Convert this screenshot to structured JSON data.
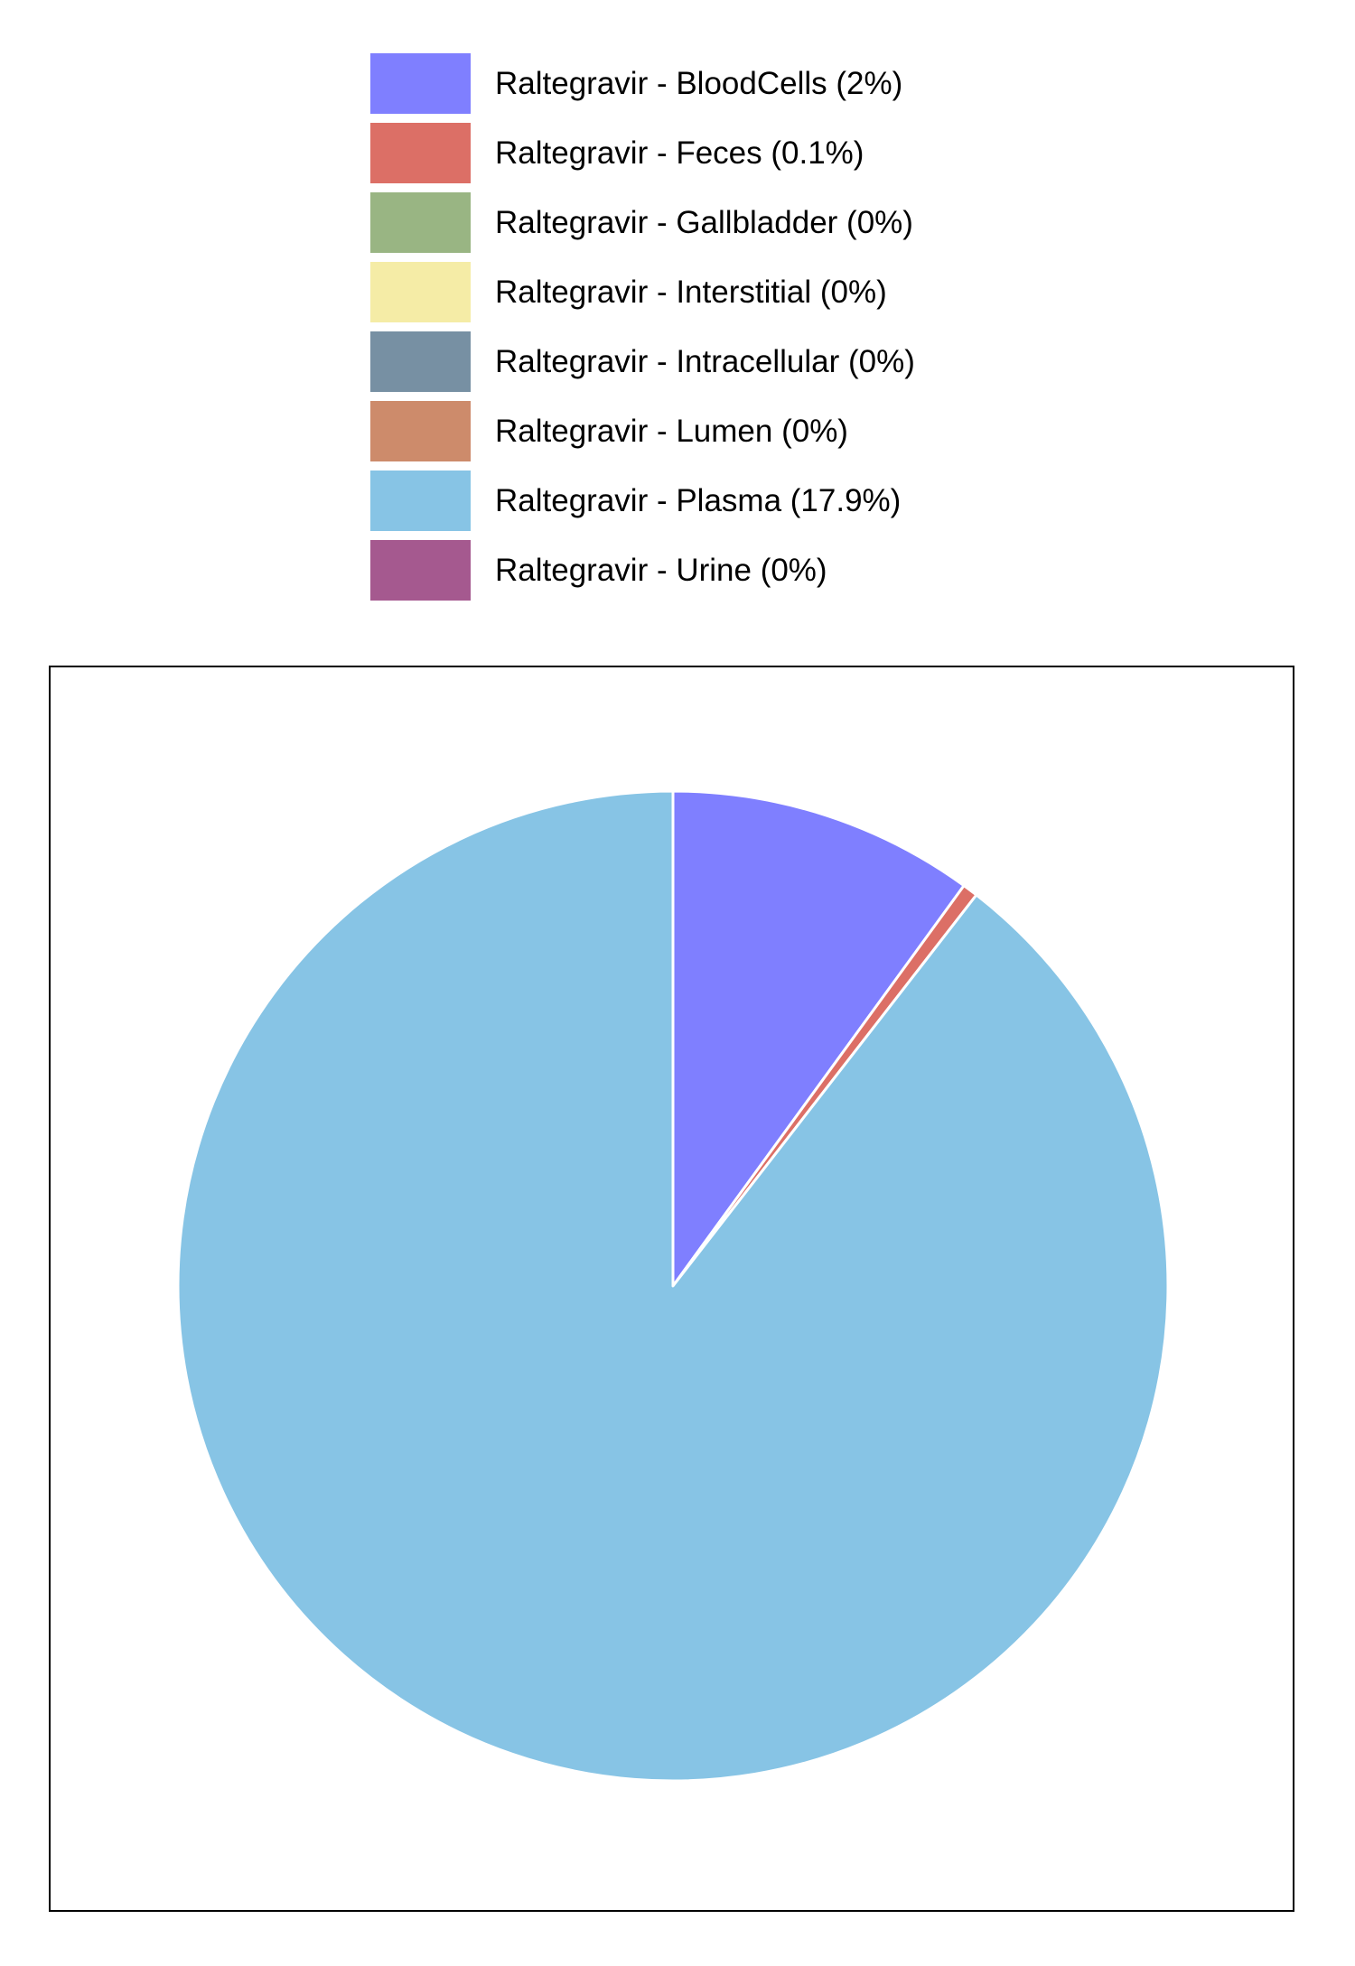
{
  "chart_data": {
    "type": "pie",
    "title": "",
    "start_angle_deg": 0,
    "direction": "clockwise",
    "slices": [
      {
        "label": "Raltegravir - BloodCells (2%)",
        "value": 2.0,
        "color": "#7f7fff"
      },
      {
        "label": "Raltegravir - Feces (0.1%)",
        "value": 0.1,
        "color": "#dc6f66"
      },
      {
        "label": "Raltegravir - Gallbladder (0%)",
        "value": 0.0,
        "color": "#99b583"
      },
      {
        "label": "Raltegravir - Interstitial (0%)",
        "value": 0.0,
        "color": "#f5eca6"
      },
      {
        "label": "Raltegravir - Intracellular (0%)",
        "value": 0.0,
        "color": "#7790a3"
      },
      {
        "label": "Raltegravir - Lumen (0%)",
        "value": 0.0,
        "color": "#cd8b6b"
      },
      {
        "label": "Raltegravir - Plasma (17.9%)",
        "value": 17.9,
        "color": "#87c4e5"
      },
      {
        "label": "Raltegravir - Urine (0%)",
        "value": 0.0,
        "color": "#a5598f"
      }
    ],
    "legend_position": "top",
    "grid": false
  }
}
